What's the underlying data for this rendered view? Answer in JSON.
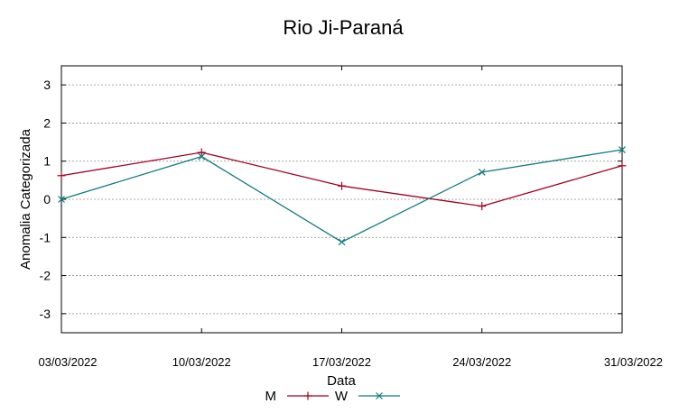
{
  "chart_data": {
    "type": "line",
    "title": "Rio Ji-Paraná",
    "xlabel": "Data",
    "ylabel": "Anomalia Categorizada",
    "categories": [
      "03/03/2022",
      "10/03/2022",
      "17/03/2022",
      "24/03/2022",
      "31/03/2022"
    ],
    "yticks": [
      3,
      2,
      1,
      0,
      -1,
      -2,
      -3
    ],
    "ylim": [
      -3.5,
      3.5
    ],
    "grid": true,
    "legend": "bottom-center",
    "series": [
      {
        "name": "M",
        "values": [
          0.62,
          1.23,
          0.35,
          -0.18,
          0.88
        ],
        "color": "#a0001e",
        "marker": "plus"
      },
      {
        "name": "W",
        "values": [
          0.0,
          1.12,
          -1.12,
          0.71,
          1.3
        ],
        "color": "#117a7f",
        "marker": "cross"
      }
    ]
  }
}
